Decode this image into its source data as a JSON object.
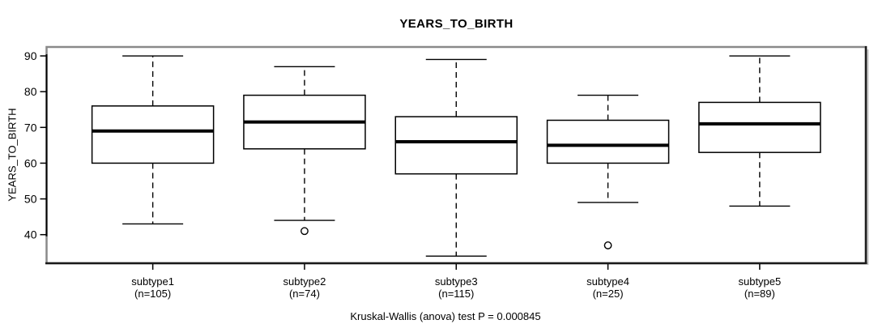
{
  "chart_data": {
    "type": "boxplot",
    "title": "YEARS_TO_BIRTH",
    "ylabel": "YEARS_TO_BIRTH",
    "caption": "Kruskal-Wallis (anova) test P = 0.000845",
    "yticks": [
      40,
      50,
      60,
      70,
      80,
      90
    ],
    "ylim": [
      32,
      92.5
    ],
    "grid": false,
    "legend": false,
    "groups": [
      {
        "label": "subtype1",
        "n_label": "(n=105)",
        "whisker_low": 43,
        "q1": 60,
        "median": 69,
        "q3": 76,
        "whisker_high": 90,
        "outliers": []
      },
      {
        "label": "subtype2",
        "n_label": "(n=74)",
        "whisker_low": 44,
        "q1": 64,
        "median": 71.5,
        "q3": 79,
        "whisker_high": 87,
        "outliers": [
          41
        ]
      },
      {
        "label": "subtype3",
        "n_label": "(n=115)",
        "whisker_low": 34,
        "q1": 57,
        "median": 66,
        "q3": 73,
        "whisker_high": 89,
        "outliers": []
      },
      {
        "label": "subtype4",
        "n_label": "(n=25)",
        "whisker_low": 49,
        "q1": 60,
        "median": 65,
        "q3": 72,
        "whisker_high": 79,
        "outliers": [
          37
        ]
      },
      {
        "label": "subtype5",
        "n_label": "(n=89)",
        "whisker_low": 48,
        "q1": 63,
        "median": 71,
        "q3": 77,
        "whisker_high": 90,
        "outliers": []
      }
    ],
    "colors": {
      "stroke": "#000000",
      "frame_top": "#8a8a8a",
      "frame_sides": "#1a1a1a",
      "box_fill": "#ffffff",
      "background": "#ffffff"
    }
  }
}
